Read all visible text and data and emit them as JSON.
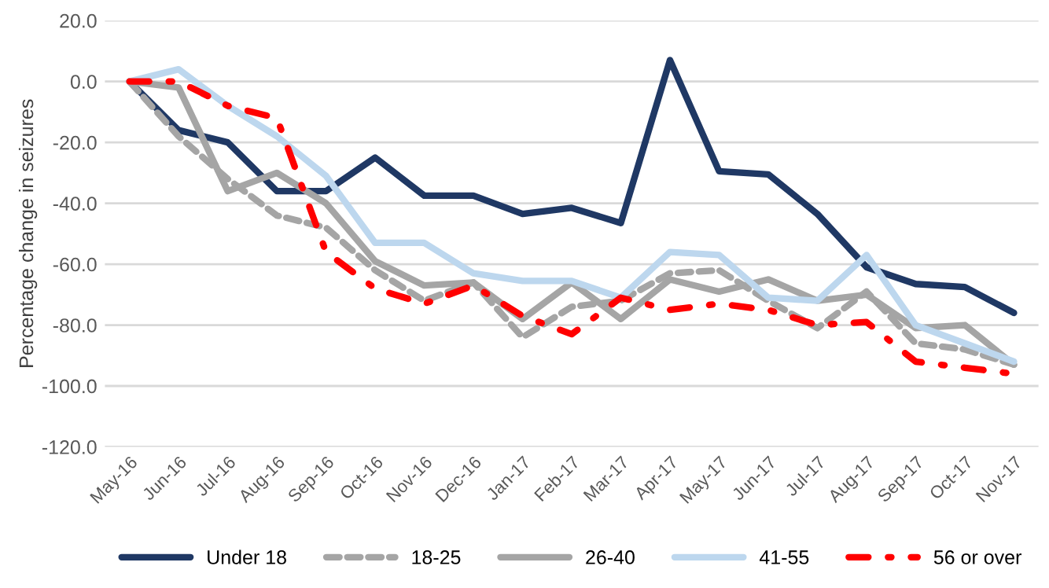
{
  "chart_data": {
    "type": "line",
    "ylabel": "Percentage change in seizures",
    "categories": [
      "May-16",
      "Jun-16",
      "Jul-16",
      "Aug-16",
      "Sep-16",
      "Oct-16",
      "Nov-16",
      "Dec-16",
      "Jan-17",
      "Feb-17",
      "Mar-17",
      "Apr-17",
      "May-17",
      "Jun-17",
      "Jul-17",
      "Aug-17",
      "Sep-17",
      "Oct-17",
      "Nov-17"
    ],
    "series": [
      {
        "name": "Under 18",
        "color": "#1f3864",
        "line_style": "solid",
        "values": [
          0,
          -16,
          -20,
          -36,
          -36,
          -25,
          -37.5,
          -37.5,
          -43.5,
          -41.5,
          -46.5,
          7,
          -29.5,
          -30.5,
          -43.5,
          -61,
          -66.5,
          -67.5,
          -76
        ]
      },
      {
        "name": "18-25",
        "color": "#a5a5a5",
        "line_style": "dashed",
        "values": [
          0,
          -18,
          -32,
          -44,
          -48,
          -62,
          -72,
          -66,
          -84,
          -74,
          -72,
          -63,
          -62,
          -72,
          -81,
          -69,
          -86,
          -88,
          -93
        ]
      },
      {
        "name": "26-40",
        "color": "#a5a5a5",
        "line_style": "solid",
        "values": [
          0,
          -2,
          -36,
          -30,
          -40,
          -59,
          -67,
          -66,
          -78,
          -66,
          -78,
          -65,
          -69,
          -65,
          -72,
          -70,
          -81,
          -80,
          -93
        ]
      },
      {
        "name": "41-55",
        "color": "#bdd7ee",
        "line_style": "solid",
        "values": [
          0,
          4,
          -8,
          -18,
          -31,
          -53,
          -53,
          -63,
          -65.5,
          -65.5,
          -71,
          -56,
          -57,
          -71,
          -72,
          -57,
          -80,
          -86,
          -92
        ]
      },
      {
        "name": "56 or over",
        "color": "#ff0000",
        "line_style": "dashdot",
        "values": [
          0,
          0,
          -8,
          -12,
          -56,
          -68,
          -73,
          -67,
          -77,
          -83,
          -71,
          -75,
          -73,
          -75,
          -80,
          -79,
          -92,
          -94,
          -96
        ]
      }
    ],
    "ylim": [
      -120,
      20
    ],
    "yticks": [
      {
        "value": 20,
        "label": "20.0"
      },
      {
        "value": 0,
        "label": "0.0"
      },
      {
        "value": -20,
        "label": "-20.0"
      },
      {
        "value": -40,
        "label": "-40.0"
      },
      {
        "value": -60,
        "label": "-60.0"
      },
      {
        "value": -80,
        "label": "-80.0"
      },
      {
        "value": -100,
        "label": "-100.0"
      },
      {
        "value": -120,
        "label": "-120.0"
      }
    ],
    "grid": "y",
    "legend": "bottom",
    "marker": "none"
  }
}
